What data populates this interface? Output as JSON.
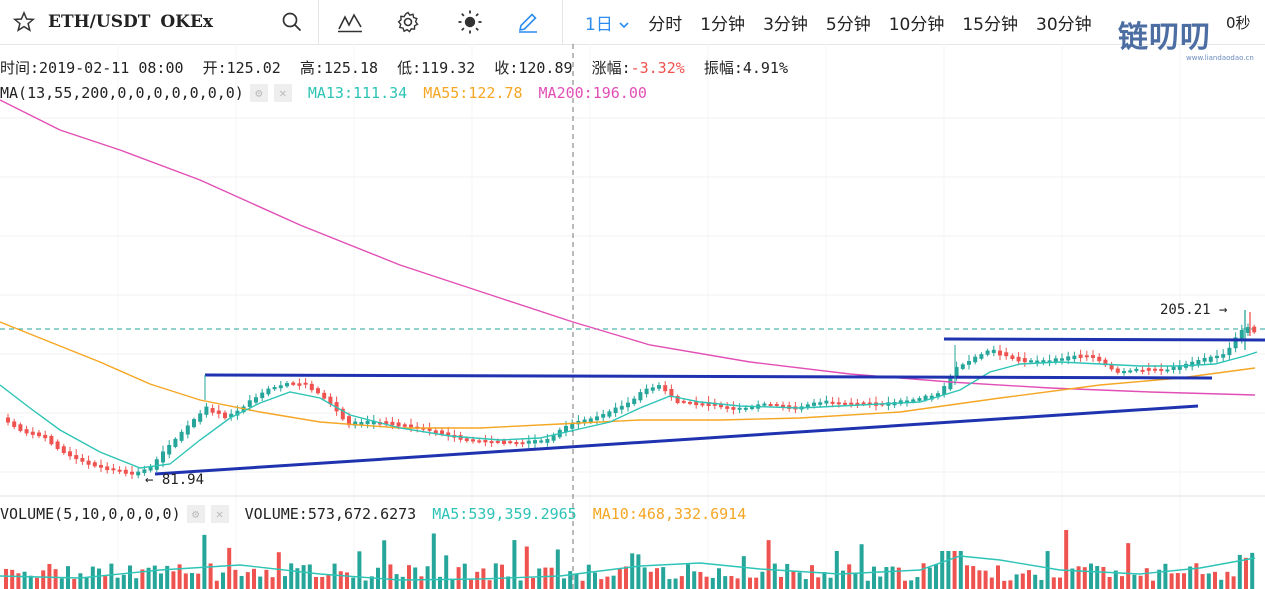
{
  "header": {
    "symbol": "ETH/USDT",
    "exchange": "OKEx",
    "intervals": [
      {
        "label": "1日",
        "active": true
      },
      {
        "label": "分时"
      },
      {
        "label": "1分钟"
      },
      {
        "label": "3分钟"
      },
      {
        "label": "5分钟"
      },
      {
        "label": "10分钟"
      },
      {
        "label": "15分钟"
      },
      {
        "label": "30分钟"
      },
      {
        "label": "0秒"
      }
    ],
    "watermark": "链叨叨",
    "watermark_sub": "www.liandaodao.cn"
  },
  "info": {
    "time": "时间:2019-02-11 08:00",
    "open": "开:125.02",
    "high": "高:125.18",
    "low": "低:119.32",
    "close": "收:120.89",
    "change_label": "涨幅:",
    "change_value": "-3.32%",
    "amplitude": "振幅:4.91%"
  },
  "ma_legend": {
    "label": "MA(13,55,200,0,0,0,0,0,0,0)",
    "ma13": "MA13:111.34",
    "ma55": "MA55:122.78",
    "ma200": "MA200:196.00"
  },
  "volume_legend": {
    "label": "VOLUME(5,10,0,0,0,0)",
    "volume": "VOLUME:573,672.6273",
    "ma5": "MA5:539,359.2965",
    "ma10": "MA10:468,332.6914"
  },
  "colors": {
    "up": "#26a69a",
    "down": "#ef5350",
    "ma13": "#2dc4b6",
    "ma55": "#f5a623",
    "ma200": "#e24fb6",
    "trend": "#1f33b0",
    "active": "#2d8cf0"
  },
  "chart_data": {
    "type": "candlestick",
    "annotations": [
      {
        "text": "205.21 →",
        "kind": "max_price"
      },
      {
        "text": "← 81.94",
        "kind": "min_price"
      }
    ],
    "price_range": [
      81.94,
      205.21
    ],
    "series": [
      {
        "name": "MA13",
        "last": 111.34
      },
      {
        "name": "MA55",
        "last": 122.78
      },
      {
        "name": "MA200",
        "last": 196.0
      }
    ],
    "volume_series": [
      {
        "name": "MA5",
        "last": 539359.2965
      },
      {
        "name": "MA10",
        "last": 468332.6914
      }
    ]
  }
}
